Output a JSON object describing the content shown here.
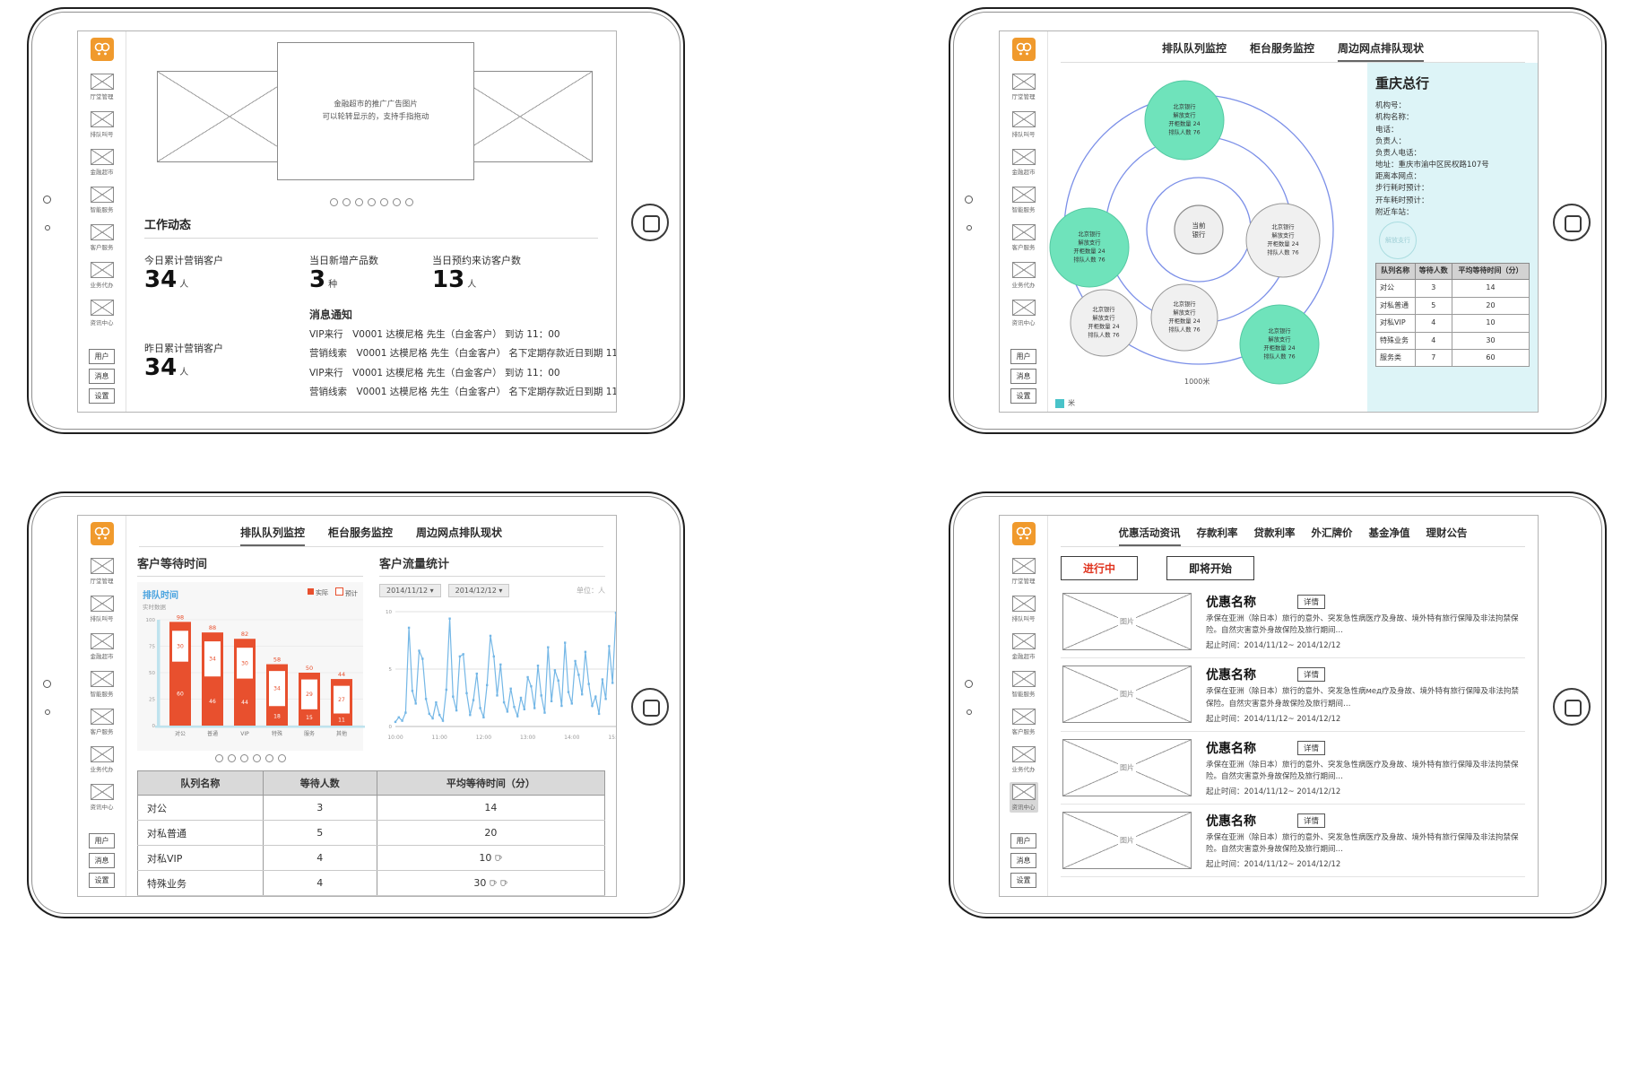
{
  "colors": {
    "accent_orange": "#f09a2d",
    "bar_red": "#e8502e",
    "mint": "#6fe3bb",
    "mint_stroke": "#54c9a2",
    "ring_blue": "#7b8fe8",
    "panel_cyan": "#ddf4f7",
    "line_blue": "#74b7e6",
    "table_header": "#d9d9d9",
    "legend_teal": "#49c3c9"
  },
  "sidebar": {
    "items": [
      {
        "label": "厅堂管理"
      },
      {
        "label": "排队叫号"
      },
      {
        "label": "金融超市"
      },
      {
        "label": "智能服务"
      },
      {
        "label": "客户服务"
      },
      {
        "label": "业务代办"
      },
      {
        "label": "资讯中心"
      }
    ],
    "footer": [
      {
        "label": "用户"
      },
      {
        "label": "消息"
      },
      {
        "label": "设置"
      }
    ]
  },
  "monitor_tabs": [
    "排队队列监控",
    "柜台服务监控",
    "周边网点排队现状"
  ],
  "home": {
    "banner": {
      "caption_line1": "金融超市的推广广告图片",
      "caption_line2": "可以轮转显示的，支持手指拖动",
      "dots": 7
    },
    "section_title": "工作动态",
    "stats": {
      "today": {
        "label": "今日累计营销客户",
        "value": "34",
        "unit": "人"
      },
      "products": {
        "label": "当日新增产品数",
        "value": "3",
        "unit": "种"
      },
      "visits": {
        "label": "当日预约来访客户数",
        "value": "13",
        "unit": "人"
      },
      "yesterday": {
        "label": "昨日累计营销客户",
        "value": "34",
        "unit": "人"
      }
    },
    "notice_title": "消息通知",
    "messages": [
      "VIP来行　V0001 达模尼格 先生（白金客户） 到访  11：00",
      "营销线索　V0001 达模尼格 先生（白金客户） 名下定期存款近日到期  11：00",
      "VIP来行　V0001 达模尼格 先生（白金客户） 到访  11：00",
      "营销线索　V0001 达模尼格 先生（白金客户） 名下定期存款近日到期  11：00"
    ]
  },
  "map": {
    "active_tab": 2,
    "center_label": [
      "当前",
      "银行"
    ],
    "bubble_lines": [
      "北京银行",
      "解放支行",
      "开柜数量  24",
      "排队人数  76"
    ],
    "bubbles": [
      {
        "type": "green",
        "x": 152,
        "y": 64,
        "r": 44
      },
      {
        "type": "green",
        "x": 46,
        "y": 206,
        "r": 44
      },
      {
        "type": "green",
        "x": 258,
        "y": 314,
        "r": 44
      },
      {
        "type": "gray",
        "x": 262,
        "y": 198,
        "r": 41
      },
      {
        "type": "gray",
        "x": 152,
        "y": 284,
        "r": 37
      },
      {
        "type": "gray",
        "x": 62,
        "y": 290,
        "r": 37
      }
    ],
    "scale_label": "1000米",
    "legend_label": "米",
    "panel": {
      "title": "重庆总行",
      "fields": [
        "机构号：",
        "机构名称：",
        "电话：",
        "负责人：",
        "负责人电话：",
        "地址：重庆市渝中区民权路107号",
        "距离本网点：",
        "步行耗时预计：",
        "开车耗时预计：",
        "附近车站："
      ],
      "ghost_bubble": "解放支行",
      "table": {
        "headers": [
          "队列名称",
          "等待人数",
          "平均等待时间（分）"
        ],
        "rows": [
          [
            "对公",
            "3",
            "14"
          ],
          [
            "对私普通",
            "5",
            "20"
          ],
          [
            "对私VIP",
            "4",
            "10"
          ],
          [
            "特殊业务",
            "4",
            "30"
          ],
          [
            "服务类",
            "7",
            "60"
          ]
        ]
      }
    }
  },
  "queue": {
    "active_tab": 0,
    "left_title": "客户等待时间",
    "right_title": "客户流量统计",
    "filters": [
      "2014/11/12 ▾",
      "2014/12/12 ▾"
    ],
    "right_note": "单位：人",
    "pagination_dots": 6,
    "chart_data": [
      {
        "type": "bar",
        "title": "排队时间",
        "subtitle": "实时数据",
        "legend": [
          "实际",
          "预计"
        ],
        "categories": [
          "对公",
          "普通",
          "VIP",
          "特殊",
          "服务",
          "其他"
        ],
        "totals": [
          98,
          88,
          82,
          58,
          50,
          44
        ],
        "solid": [
          60,
          46,
          44,
          18,
          15,
          11
        ],
        "white": [
          30,
          34,
          30,
          34,
          29,
          27
        ],
        "ylim": [
          0,
          100
        ],
        "yticks": [
          0,
          25,
          50,
          75,
          100
        ],
        "xlabel": "",
        "ylabel": ""
      },
      {
        "type": "line",
        "title": "",
        "x_labels": [
          "10:00",
          "11:00",
          "12:00",
          "13:00",
          "14:00",
          "15:00"
        ],
        "ylim": [
          0,
          10
        ],
        "yticks": [
          0,
          5,
          10
        ],
        "values": [
          0.4,
          0.8,
          0.5,
          1.2,
          8.6,
          3.1,
          2.0,
          6.6,
          5.9,
          2.4,
          1.1,
          0.7,
          2.1,
          1.0,
          0.5,
          3.2,
          9.4,
          2.6,
          1.4,
          6.1,
          6.3,
          2.9,
          1.0,
          2.3,
          4.6,
          1.6,
          0.8,
          3.6,
          7.9,
          6.1,
          2.7,
          5.4,
          2.1,
          1.3,
          3.3,
          1.7,
          0.9,
          2.5,
          1.5,
          4.3,
          3.5,
          1.6,
          5.3,
          2.7,
          1.2,
          6.9,
          2.2,
          4.9,
          4.0,
          1.8,
          7.3,
          3.0,
          2.0,
          5.7,
          4.5,
          2.8,
          6.5,
          3.7,
          1.8,
          2.6,
          1.1,
          4.1,
          2.4,
          7.0,
          3.8,
          9.9
        ]
      }
    ],
    "table": {
      "headers": [
        "队列名称",
        "等待人数",
        "平均等待时间（分）"
      ],
      "rows": [
        {
          "name": "对公",
          "waiting": "3",
          "avg": "14",
          "cups": 0,
          "alert": false
        },
        {
          "name": "对私普通",
          "waiting": "5",
          "avg": "20",
          "cups": 0,
          "alert": false
        },
        {
          "name": "对私VIP",
          "waiting": "4",
          "avg": "10",
          "cups": 1,
          "alert": false
        },
        {
          "name": "特殊业务",
          "waiting": "4",
          "avg": "30",
          "cups": 2,
          "alert": false
        },
        {
          "name": "服务类",
          "waiting": "7",
          "avg": "60",
          "cups": 3,
          "alert": true
        }
      ]
    }
  },
  "news": {
    "tabs": [
      "优惠活动资讯",
      "存款利率",
      "贷款利率",
      "外汇牌价",
      "基金净值",
      "理财公告"
    ],
    "active_tab": 0,
    "filter_buttons": [
      {
        "label": "进行中",
        "color": "#e0341f"
      },
      {
        "label": "即将开始",
        "color": "#222222"
      }
    ],
    "offers": [
      {
        "image_label": "图片",
        "title": "优惠名称",
        "detail_label": "详情",
        "desc": "承保在亚洲（除日本）旅行的意外、突发急性病医疗及身故、境外特有旅行保障及非法拘禁保险。自然灾害意外身故保险及旅行期间…",
        "period": "起止时间：2014/11/12~ 2014/12/12"
      },
      {
        "image_label": "图片",
        "title": "优惠名称",
        "detail_label": "详情",
        "desc": "承保在亚洲（除日本）旅行的意外、突发急性病мед疗及身故、境外特有旅行保障及非法拘禁保险。自然灾害意外身故保险及旅行期间…",
        "period": "起止时间：2014/11/12~ 2014/12/12"
      },
      {
        "image_label": "图片",
        "title": "优惠名称",
        "detail_label": "详情",
        "desc": "承保在亚洲（除日本）旅行的意外、突发急性病医疗及身故、境外特有旅行保障及非法拘禁保险。自然灾害意外身故保险及旅行期间…",
        "period": "起止时间：2014/11/12~ 2014/12/12"
      },
      {
        "image_label": "图片",
        "title": "优惠名称",
        "detail_label": "详情",
        "desc": "承保在亚洲（除日本）旅行的意外、突发急性病医疗及身故、境外特有旅行保障及非法拘禁保险。自然灾害意外身故保险及旅行期间…",
        "period": "起止时间：2014/11/12~ 2014/12/12"
      }
    ]
  }
}
